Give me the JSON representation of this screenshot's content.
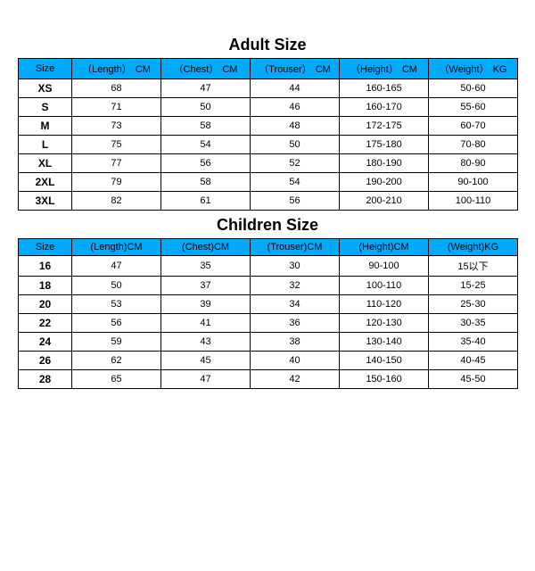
{
  "adult": {
    "title": "Adult Size",
    "header_bg": "#00aaff",
    "border_color": "#000000",
    "columns": [
      {
        "label": "Size",
        "unit": ""
      },
      {
        "part": "（Length）",
        "unit": "CM"
      },
      {
        "part": "（Chest）",
        "unit": "CM"
      },
      {
        "part": "（Trouser）",
        "unit": "CM"
      },
      {
        "part": "（Height）",
        "unit": "CM"
      },
      {
        "part": "（Weight）",
        "unit": "KG"
      }
    ],
    "rows": [
      {
        "size": "XS",
        "length": "68",
        "chest": "47",
        "trouser": "44",
        "height": "160-165",
        "weight": "50-60"
      },
      {
        "size": "S",
        "length": "71",
        "chest": "50",
        "trouser": "46",
        "height": "160-170",
        "weight": "55-60"
      },
      {
        "size": "M",
        "length": "73",
        "chest": "58",
        "trouser": "48",
        "height": "172-175",
        "weight": "60-70"
      },
      {
        "size": "L",
        "length": "75",
        "chest": "54",
        "trouser": "50",
        "height": "175-180",
        "weight": "70-80"
      },
      {
        "size": "XL",
        "length": "77",
        "chest": "56",
        "trouser": "52",
        "height": "180-190",
        "weight": "80-90"
      },
      {
        "size": "2XL",
        "length": "79",
        "chest": "58",
        "trouser": "54",
        "height": "190-200",
        "weight": "90-100"
      },
      {
        "size": "3XL",
        "length": "82",
        "chest": "61",
        "trouser": "56",
        "height": "200-210",
        "weight": "100-110"
      }
    ]
  },
  "children": {
    "title": "Children Size",
    "header_bg": "#00aaff",
    "border_color": "#000000",
    "columns": [
      {
        "label": "Size",
        "unit": ""
      },
      {
        "part": "(Length)",
        "unit": "CM"
      },
      {
        "part": "(Chest)",
        "unit": "CM"
      },
      {
        "part": "(Trouser)",
        "unit": "CM"
      },
      {
        "part": "(Height)",
        "unit": "CM"
      },
      {
        "part": "(Weight)",
        "unit": "KG"
      }
    ],
    "rows": [
      {
        "size": "16",
        "length": "47",
        "chest": "35",
        "trouser": "30",
        "height": "90-100",
        "weight": "15以下"
      },
      {
        "size": "18",
        "length": "50",
        "chest": "37",
        "trouser": "32",
        "height": "100-110",
        "weight": "15-25"
      },
      {
        "size": "20",
        "length": "53",
        "chest": "39",
        "trouser": "34",
        "height": "110-120",
        "weight": "25-30"
      },
      {
        "size": "22",
        "length": "56",
        "chest": "41",
        "trouser": "36",
        "height": "120-130",
        "weight": "30-35"
      },
      {
        "size": "24",
        "length": "59",
        "chest": "43",
        "trouser": "38",
        "height": "130-140",
        "weight": "35-40"
      },
      {
        "size": "26",
        "length": "62",
        "chest": "45",
        "trouser": "40",
        "height": "140-150",
        "weight": "40-45"
      },
      {
        "size": "28",
        "length": "65",
        "chest": "47",
        "trouser": "42",
        "height": "150-160",
        "weight": "45-50"
      }
    ]
  }
}
